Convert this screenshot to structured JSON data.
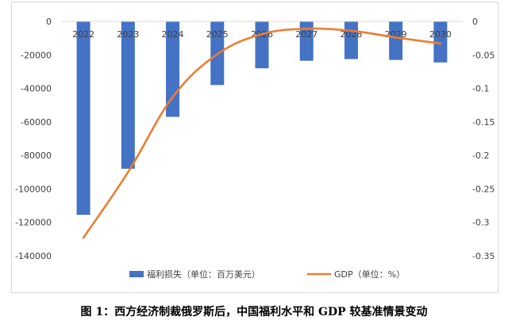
{
  "chart_data": {
    "type": "bar+line",
    "categories": [
      "2022",
      "2023",
      "2024",
      "2025",
      "2026",
      "2027",
      "2028",
      "2029",
      "2030"
    ],
    "series": [
      {
        "name": "福利损失（单位：百万美元）",
        "type": "bar",
        "axis": "left",
        "color": "#4472C4",
        "values": [
          -115500,
          -88000,
          -57000,
          -38000,
          -28000,
          -23500,
          -22500,
          -23000,
          -24500
        ]
      },
      {
        "name": "GDP（单位：%）",
        "type": "line",
        "axis": "right",
        "color": "#ED7D31",
        "values": [
          -0.323,
          -0.225,
          -0.113,
          -0.049,
          -0.019,
          -0.011,
          -0.014,
          -0.024,
          -0.033
        ]
      }
    ],
    "ylim_left": [
      -140000,
      0
    ],
    "yticks_left": [
      "0",
      "-20000",
      "-40000",
      "-60000",
      "-80000",
      "-100000",
      "-120000",
      "-140000"
    ],
    "ylim_right": [
      -0.35,
      0
    ],
    "yticks_right": [
      "0",
      "-0.05",
      "-0.1",
      "-0.15",
      "-0.2",
      "-0.25",
      "-0.3",
      "-0.35"
    ],
    "grid": false,
    "legend_position": "bottom",
    "caption": "图 1：西方经济制裁俄罗斯后，中国福利水平和 GDP 较基准情景变动"
  }
}
